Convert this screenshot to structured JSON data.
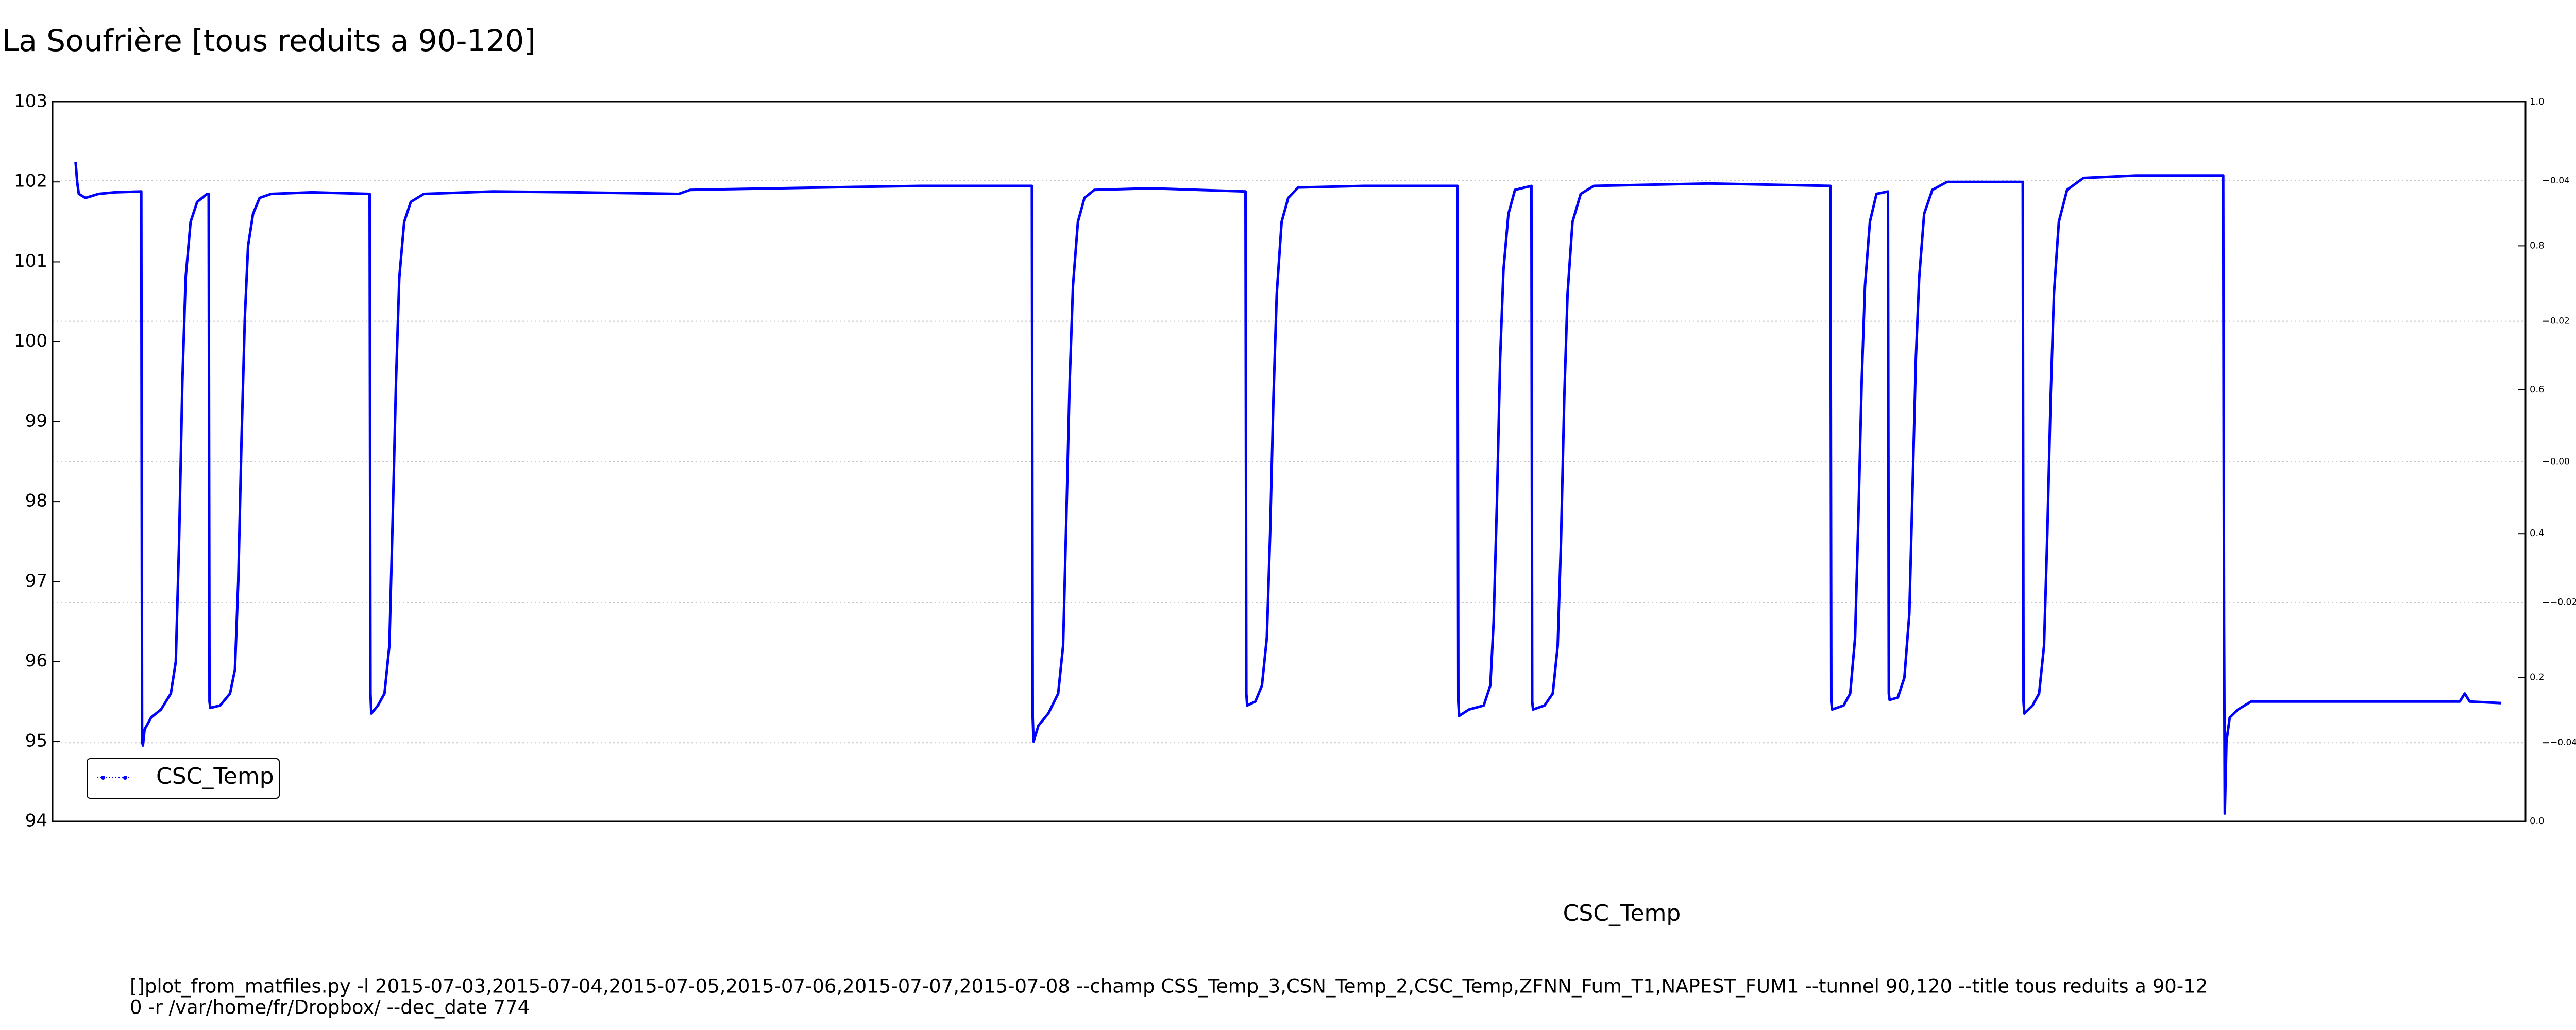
{
  "chart_data": {
    "type": "line",
    "title": "La Soufrière [tous reduits a 90-120]",
    "xlabel": "CSC_Temp",
    "annotations": [
      "[]plot_from_matfiles.py -l 2015-07-03,2015-07-04,2015-07-05,2015-07-06,2015-07-07,2015-07-08 --champ CSS_Temp_3,CSN_Temp_2,CSC_Temp,ZFNN_Fum_T1,NAPEST_FUM1 --tunnel 90,120 --title tous reduits a 90-12",
      "0 -r /var/home/fr/Dropbox/ --dec_date 774"
    ],
    "xlim": [
      32,
      1537
    ],
    "ylim": [
      94,
      103
    ],
    "yticks": [
      94,
      95,
      96,
      97,
      98,
      99,
      100,
      101,
      102,
      103
    ],
    "y2lim": [
      0,
      1
    ],
    "y2ticks": [
      {
        "value": 0,
        "label": "0.0"
      },
      0.2,
      0.4,
      0.6,
      0.8,
      {
        "value": 1,
        "label": "1.0"
      }
    ],
    "y3lim": [
      -0.0512,
      0.0512
    ],
    "y3ticks": [
      {
        "value": -0.04,
        "label": "−0.04"
      },
      {
        "value": -0.02,
        "label": "−0.02"
      },
      {
        "value": 0,
        "label": "0.00"
      },
      0.02,
      0.04
    ],
    "grid": true,
    "legend": "lower left",
    "x": [
      46,
      47,
      48,
      52,
      60,
      70,
      86,
      86.5,
      87,
      88,
      92,
      98,
      104,
      107,
      109,
      111,
      113,
      116,
      120,
      126,
      127,
      127.5,
      128,
      134,
      140,
      143,
      145,
      147,
      149,
      151,
      154,
      158,
      165,
      190,
      225,
      225.5,
      226,
      230,
      234,
      237,
      239,
      241,
      243,
      246,
      250,
      258,
      300,
      350,
      413,
      420,
      500,
      560,
      628,
      628.5,
      629,
      632,
      638,
      644,
      647,
      649,
      651,
      653,
      656,
      660,
      666,
      700,
      758,
      758.5,
      759,
      764,
      768,
      771,
      773,
      775,
      777,
      780,
      784,
      790,
      830,
      887,
      887.5,
      888,
      894,
      903,
      907,
      909,
      911,
      913,
      915,
      918,
      922,
      932,
      932.5,
      933,
      940,
      945,
      948,
      950,
      952,
      954,
      957,
      962,
      970,
      1040,
      1114,
      1114.5,
      1115,
      1122,
      1126,
      1129,
      1131,
      1133,
      1135,
      1138,
      1142,
      1149,
      1149.5,
      1150,
      1155,
      1159,
      1162,
      1164,
      1166,
      1168,
      1171,
      1176,
      1185,
      1231,
      1231.5,
      1232,
      1237,
      1241,
      1244,
      1246,
      1248,
      1250,
      1253,
      1258,
      1268,
      1300,
      1353,
      1353.5,
      1354,
      1355,
      1357,
      1362,
      1370,
      1400,
      1450,
      1497,
      1500,
      1503,
      1522
    ],
    "series": [
      {
        "name": "CSC_Temp",
        "color": "#0000ff",
        "values": [
          102.25,
          102.0,
          101.85,
          101.8,
          101.85,
          101.87,
          101.88,
          95.0,
          94.95,
          95.15,
          95.3,
          95.4,
          95.6,
          96,
          97.5,
          99.5,
          100.8,
          101.5,
          101.75,
          101.85,
          101.85,
          95.5,
          95.42,
          95.45,
          95.6,
          95.9,
          97,
          98.8,
          100.3,
          101.2,
          101.6,
          101.8,
          101.85,
          101.87,
          101.85,
          95.6,
          95.35,
          95.45,
          95.6,
          96.2,
          97.8,
          99.5,
          100.8,
          101.5,
          101.75,
          101.85,
          101.88,
          101.87,
          101.85,
          101.9,
          101.93,
          101.95,
          101.95,
          95.3,
          95.0,
          95.2,
          95.35,
          95.6,
          96.2,
          97.8,
          99.5,
          100.7,
          101.5,
          101.8,
          101.9,
          101.92,
          101.88,
          95.6,
          95.45,
          95.5,
          95.7,
          96.3,
          97.6,
          99.3,
          100.6,
          101.5,
          101.8,
          101.93,
          101.95,
          101.95,
          95.5,
          95.32,
          95.4,
          95.45,
          95.7,
          96.5,
          98,
          99.8,
          100.9,
          101.6,
          101.9,
          101.95,
          95.5,
          95.4,
          95.45,
          95.6,
          96.2,
          97.5,
          99.3,
          100.6,
          101.5,
          101.85,
          101.95,
          101.98,
          101.95,
          95.5,
          95.4,
          95.45,
          95.6,
          96.3,
          97.8,
          99.5,
          100.7,
          101.5,
          101.85,
          101.88,
          95.6,
          95.52,
          95.55,
          95.8,
          96.6,
          98.2,
          99.8,
          100.8,
          101.6,
          101.9,
          102.0,
          102.0,
          95.5,
          95.35,
          95.45,
          95.6,
          96.2,
          97.6,
          99.3,
          100.6,
          101.5,
          101.9,
          102.05,
          102.08,
          102.08,
          96.5,
          94.1,
          95.0,
          95.3,
          95.4,
          95.5,
          95.5,
          95.5,
          95.5,
          95.6,
          95.5,
          95.48
        ]
      }
    ]
  }
}
